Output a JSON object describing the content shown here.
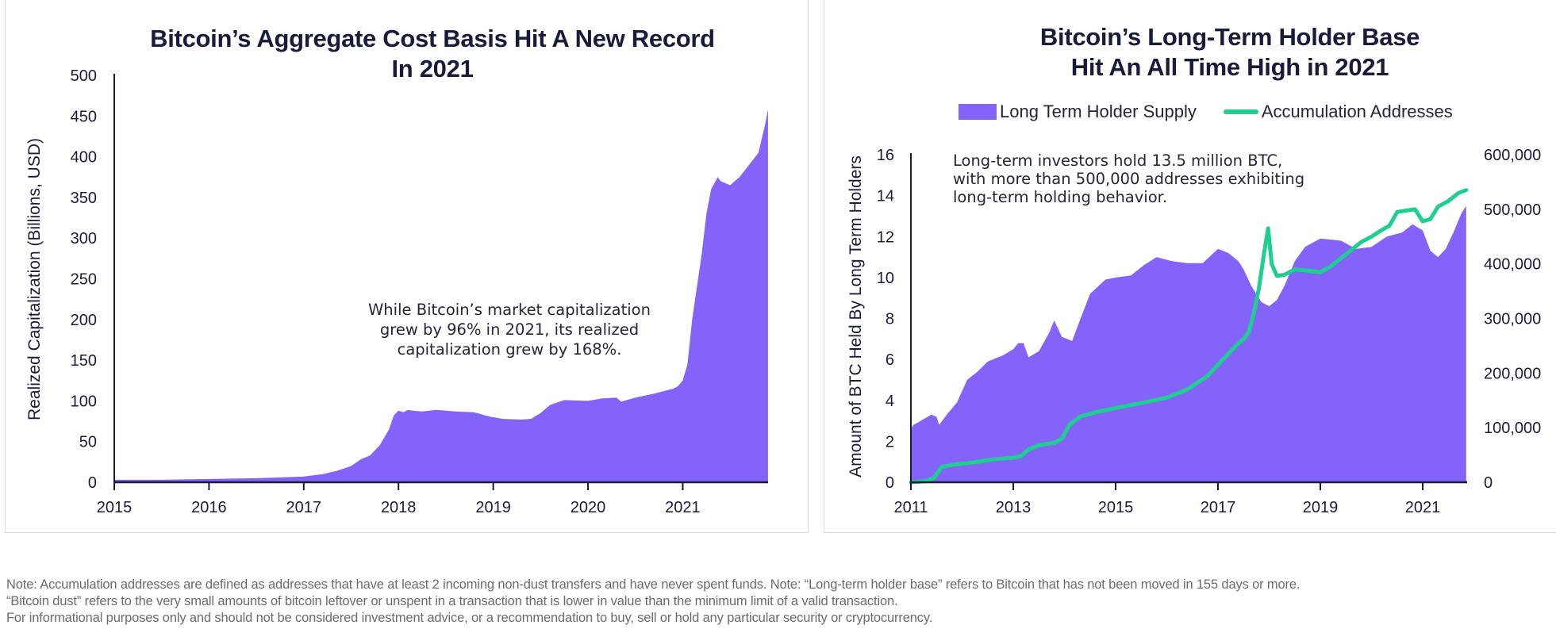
{
  "colors": {
    "area": "#8463fa",
    "line": "#1fcf8f",
    "axis": "#1a1a3a",
    "title": "#1a1a3a",
    "footer": "#6b6b6b"
  },
  "chart_data": [
    {
      "type": "area",
      "title": "Bitcoin’s Aggregate Cost Basis Hit A New Record In 2021",
      "title_lines": [
        "Bitcoin’s Aggregate Cost Basis Hit A New Record",
        "In 2021"
      ],
      "xlabel": "",
      "ylabel": "Realized Capitalization (Billions, USD)",
      "xlim": [
        2015,
        2021.9
      ],
      "ylim": [
        0,
        500
      ],
      "grid": false,
      "xticks": [
        "2015",
        "2016",
        "2017",
        "2018",
        "2019",
        "2020",
        "2021"
      ],
      "yticks": [
        "0",
        "50",
        "100",
        "150",
        "200",
        "250",
        "300",
        "350",
        "400",
        "450",
        "500"
      ],
      "annotation": [
        "While Bitcoin’s market capitalization",
        "grew by 96% in 2021, its realized",
        "capitalization grew by 168%."
      ],
      "series": [
        {
          "name": "Realized Capitalization",
          "x": [
            2015.0,
            2015.5,
            2016.0,
            2016.5,
            2017.0,
            2017.2,
            2017.35,
            2017.5,
            2017.6,
            2017.7,
            2017.8,
            2017.9,
            2017.95,
            2018.0,
            2018.05,
            2018.1,
            2018.15,
            2018.25,
            2018.4,
            2018.6,
            2018.8,
            2018.95,
            2019.1,
            2019.3,
            2019.4,
            2019.5,
            2019.6,
            2019.75,
            2020.0,
            2020.15,
            2020.3,
            2020.35,
            2020.5,
            2020.7,
            2020.8,
            2020.9,
            2020.95,
            2021.0,
            2021.05,
            2021.1,
            2021.2,
            2021.25,
            2021.3,
            2021.37,
            2021.4,
            2021.5,
            2021.6,
            2021.7,
            2021.8,
            2021.87,
            2021.9
          ],
          "values": [
            3,
            3,
            4,
            5,
            7,
            10,
            14,
            20,
            28,
            33,
            45,
            65,
            82,
            88,
            86,
            89,
            88,
            87,
            89,
            87,
            86,
            81,
            78,
            77,
            78,
            85,
            95,
            101,
            100,
            103,
            104,
            99,
            104,
            109,
            112,
            115,
            118,
            125,
            145,
            200,
            280,
            330,
            360,
            375,
            370,
            365,
            375,
            390,
            405,
            440,
            458
          ]
        }
      ]
    },
    {
      "type": "area+line",
      "title": "Bitcoin’s Long-Term Holder Base Hit An All Time High in 2021",
      "title_lines": [
        "Bitcoin’s Long-Term Holder Base",
        "Hit An All Time High in 2021"
      ],
      "xlabel": "",
      "ylabel": "Amount of BTC Held By Long Term Holders",
      "ylabel_right": "",
      "xlim": [
        2011,
        2021.85
      ],
      "ylim": [
        0,
        16
      ],
      "ylim_right": [
        0,
        600000
      ],
      "grid": false,
      "legend": {
        "placement": "top",
        "entries": [
          "Long Term Holder Supply",
          "Accumulation Addresses"
        ]
      },
      "xticks": [
        "2011",
        "2013",
        "2015",
        "2017",
        "2019",
        "2021"
      ],
      "yticks": [
        "0",
        "2",
        "4",
        "6",
        "8",
        "10",
        "12",
        "14",
        "16"
      ],
      "yticks_right": [
        "0",
        "100,000",
        "200,000",
        "300,000",
        "400,000",
        "500,000",
        "600,000"
      ],
      "annotation": [
        "Long-term investors hold 13.5 million BTC,",
        "with more than 500,000 addresses exhibiting",
        "long-term holding behavior."
      ],
      "series": [
        {
          "name": "Long Term Holder Supply",
          "axis": "left",
          "x": [
            2011.0,
            2011.05,
            2011.4,
            2011.5,
            2011.55,
            2011.7,
            2011.9,
            2012.1,
            2012.3,
            2012.5,
            2012.8,
            2013.0,
            2013.1,
            2013.2,
            2013.3,
            2013.5,
            2013.7,
            2013.8,
            2013.95,
            2014.15,
            2014.3,
            2014.5,
            2014.8,
            2015.0,
            2015.3,
            2015.55,
            2015.8,
            2016.1,
            2016.4,
            2016.7,
            2017.0,
            2017.2,
            2017.4,
            2017.5,
            2017.65,
            2017.85,
            2018.0,
            2018.15,
            2018.3,
            2018.5,
            2018.7,
            2019.0,
            2019.4,
            2019.7,
            2020.0,
            2020.3,
            2020.6,
            2020.8,
            2021.0,
            2021.15,
            2021.3,
            2021.45,
            2021.6,
            2021.75,
            2021.85
          ],
          "values": [
            2.6,
            2.8,
            3.3,
            3.2,
            2.8,
            3.3,
            3.9,
            5.0,
            5.4,
            5.9,
            6.2,
            6.5,
            6.8,
            6.8,
            6.1,
            6.4,
            7.3,
            7.9,
            7.1,
            6.9,
            7.9,
            9.2,
            9.9,
            10.0,
            10.1,
            10.6,
            11.0,
            10.8,
            10.7,
            10.7,
            11.4,
            11.2,
            10.8,
            10.4,
            9.6,
            8.8,
            8.6,
            8.9,
            9.6,
            10.8,
            11.5,
            11.9,
            11.8,
            11.4,
            11.5,
            12.0,
            12.2,
            12.6,
            12.3,
            11.3,
            11.0,
            11.4,
            12.2,
            13.1,
            13.5
          ]
        },
        {
          "name": "Accumulation Addresses",
          "axis": "right",
          "x": [
            2011.0,
            2011.3,
            2011.45,
            2011.6,
            2011.8,
            2012.2,
            2012.6,
            2013.0,
            2013.15,
            2013.3,
            2013.5,
            2013.8,
            2013.95,
            2014.1,
            2014.3,
            2014.6,
            2015.0,
            2015.5,
            2016.0,
            2016.4,
            2016.8,
            2017.1,
            2017.25,
            2017.35,
            2017.5,
            2017.6,
            2017.7,
            2017.8,
            2017.9,
            2017.98,
            2018.05,
            2018.15,
            2018.3,
            2018.5,
            2018.7,
            2019.0,
            2019.2,
            2019.4,
            2019.6,
            2019.8,
            2020.0,
            2020.2,
            2020.35,
            2020.5,
            2020.7,
            2020.85,
            2021.0,
            2021.15,
            2021.3,
            2021.5,
            2021.7,
            2021.85
          ],
          "values": [
            0,
            2000,
            8000,
            28000,
            32000,
            36000,
            42000,
            45000,
            48000,
            60000,
            68000,
            72000,
            80000,
            105000,
            120000,
            128000,
            136000,
            145000,
            155000,
            170000,
            195000,
            225000,
            240000,
            250000,
            262000,
            275000,
            310000,
            355000,
            420000,
            465000,
            400000,
            378000,
            380000,
            390000,
            388000,
            385000,
            395000,
            410000,
            425000,
            440000,
            450000,
            462000,
            470000,
            495000,
            498000,
            500000,
            478000,
            482000,
            505000,
            515000,
            530000,
            535000
          ]
        }
      ]
    }
  ],
  "footer": {
    "lines": [
      "Note: Accumulation addresses are defined as addresses that have at least 2 incoming non-dust transfers and have never spent funds. Note: “Long-term holder base” refers to Bitcoin that has not been moved in 155 days or more.",
      "“Bitcoin dust” refers to the very small amounts of bitcoin leftover or unspent in a transaction that is lower in value than the minimum limit of a valid transaction.",
      "For informational purposes only and should not be considered investment advice, or a recommendation to buy, sell or hold any particular security or cryptocurrency."
    ]
  }
}
